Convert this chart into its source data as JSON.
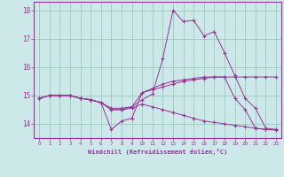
{
  "xlabel": "Windchill (Refroidissement éolien,°C)",
  "bg_color": "#cce8e8",
  "grid_color": "#99ccbb",
  "line_color": "#993399",
  "xlim": [
    -0.5,
    23.5
  ],
  "ylim": [
    13.5,
    18.3
  ],
  "xticks": [
    0,
    1,
    2,
    3,
    4,
    5,
    6,
    7,
    8,
    9,
    10,
    11,
    12,
    13,
    14,
    15,
    16,
    17,
    18,
    19,
    20,
    21,
    22,
    23
  ],
  "yticks": [
    14,
    15,
    16,
    17,
    18
  ],
  "series_data": {
    "line1_x": [
      0,
      1,
      2,
      3,
      4,
      5,
      6,
      7,
      8,
      9,
      10,
      11,
      12,
      13,
      14,
      15,
      16,
      17,
      18,
      19,
      20,
      21,
      22,
      23
    ],
    "line1_y": [
      14.9,
      15.0,
      15.0,
      15.0,
      14.9,
      14.85,
      14.75,
      14.5,
      14.5,
      14.6,
      14.85,
      15.05,
      16.3,
      18.0,
      17.6,
      17.65,
      17.1,
      17.25,
      16.5,
      15.7,
      14.9,
      14.55,
      13.85,
      13.8
    ],
    "line2_x": [
      0,
      1,
      2,
      3,
      4,
      5,
      6,
      7,
      8,
      9,
      10,
      11,
      12,
      13,
      14,
      15,
      16,
      17,
      18,
      19,
      20,
      21,
      22,
      23
    ],
    "line2_y": [
      14.9,
      15.0,
      15.0,
      15.0,
      14.9,
      14.85,
      14.75,
      14.55,
      14.55,
      14.6,
      15.1,
      15.25,
      15.4,
      15.5,
      15.55,
      15.6,
      15.65,
      15.65,
      15.65,
      15.65,
      15.65,
      15.65,
      15.65,
      15.65
    ],
    "line3_x": [
      0,
      1,
      2,
      3,
      4,
      5,
      6,
      7,
      8,
      9,
      10,
      11,
      12,
      13,
      14,
      15,
      16,
      17,
      18,
      19,
      20,
      21,
      22,
      23
    ],
    "line3_y": [
      14.9,
      15.0,
      15.0,
      15.0,
      14.9,
      14.85,
      14.75,
      13.8,
      14.1,
      14.2,
      15.1,
      15.2,
      15.3,
      15.4,
      15.5,
      15.55,
      15.6,
      15.65,
      15.65,
      14.9,
      14.5,
      13.85,
      13.8,
      13.8
    ],
    "line4_x": [
      0,
      1,
      2,
      3,
      4,
      5,
      6,
      7,
      8,
      9,
      10,
      11,
      12,
      13,
      14,
      15,
      16,
      17,
      18,
      19,
      20,
      21,
      22,
      23
    ],
    "line4_y": [
      14.9,
      15.0,
      15.0,
      15.0,
      14.9,
      14.85,
      14.75,
      14.5,
      14.5,
      14.55,
      14.7,
      14.6,
      14.5,
      14.4,
      14.3,
      14.2,
      14.1,
      14.05,
      14.0,
      13.95,
      13.9,
      13.85,
      13.8,
      13.78
    ]
  }
}
